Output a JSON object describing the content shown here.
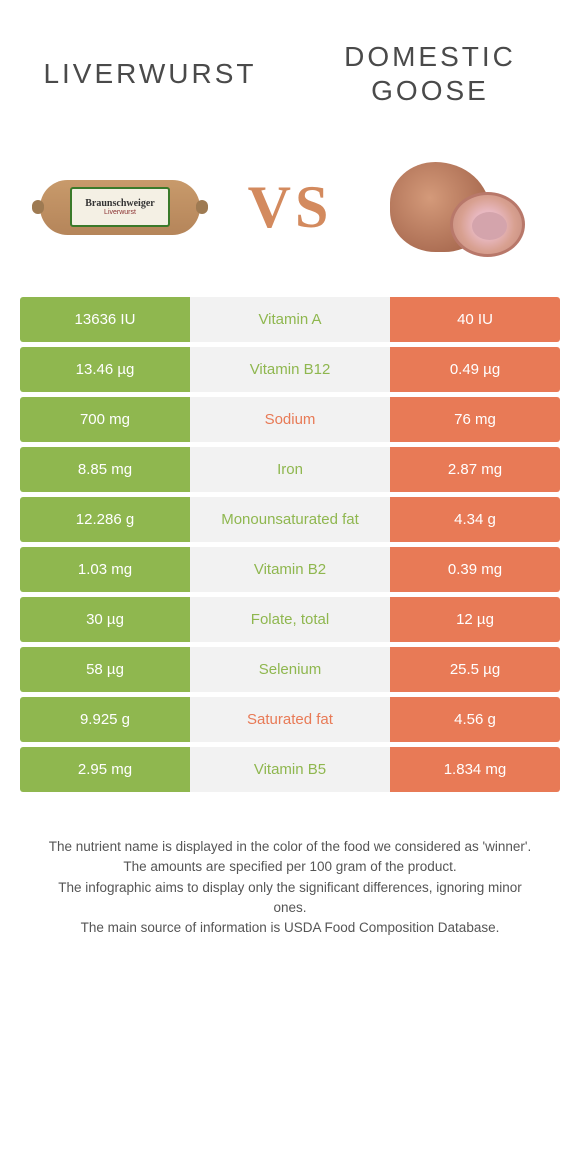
{
  "header": {
    "left_title": "Liverwurst",
    "right_title": "Domestic goose",
    "vs_label": "VS",
    "sausage_brand": "Braunschweiger",
    "sausage_sub": "Liverwurst"
  },
  "colors": {
    "green": "#8fb74f",
    "orange": "#e87a56",
    "row_bg": "#f2f2f2",
    "title": "#4a4a4a",
    "vs": "#d38a5e"
  },
  "rows": [
    {
      "left": "13636 IU",
      "label": "Vitamin A",
      "right": "40 IU",
      "side": "green"
    },
    {
      "left": "13.46 µg",
      "label": "Vitamin B12",
      "right": "0.49 µg",
      "side": "green"
    },
    {
      "left": "700 mg",
      "label": "Sodium",
      "right": "76 mg",
      "side": "orange"
    },
    {
      "left": "8.85 mg",
      "label": "Iron",
      "right": "2.87 mg",
      "side": "green"
    },
    {
      "left": "12.286 g",
      "label": "Monounsaturated fat",
      "right": "4.34 g",
      "side": "green"
    },
    {
      "left": "1.03 mg",
      "label": "Vitamin B2",
      "right": "0.39 mg",
      "side": "green"
    },
    {
      "left": "30 µg",
      "label": "Folate, total",
      "right": "12 µg",
      "side": "green"
    },
    {
      "left": "58 µg",
      "label": "Selenium",
      "right": "25.5 µg",
      "side": "green"
    },
    {
      "left": "9.925 g",
      "label": "Saturated fat",
      "right": "4.56 g",
      "side": "orange"
    },
    {
      "left": "2.95 mg",
      "label": "Vitamin B5",
      "right": "1.834 mg",
      "side": "green"
    }
  ],
  "footer": {
    "line1": "The nutrient name is displayed in the color of the food we considered as 'winner'.",
    "line2": "The amounts are specified per 100 gram of the product.",
    "line3": "The infographic aims to display only the significant differences, ignoring minor ones.",
    "line4": "The main source of information is USDA Food Composition Database."
  }
}
